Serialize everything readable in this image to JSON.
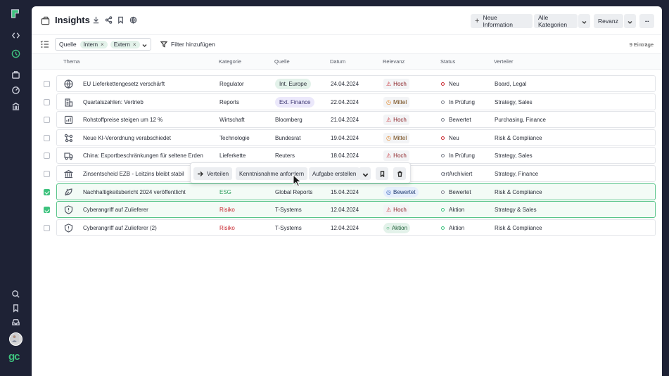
{
  "app": {
    "title": "Insights",
    "logo_text": "gc"
  },
  "toolbar": {
    "new_label": "Neue Information",
    "categories_label": "Alle Kategorien",
    "sort_label": "Revanz",
    "more_label": "···"
  },
  "filter": {
    "source_label": "Quelle",
    "chips": [
      "Intern",
      "Extern"
    ],
    "add_label": "Filter hinzufügen",
    "count_label": "9 Einträge"
  },
  "columns": [
    "Thema",
    "Kategorie",
    "Quelle",
    "Datum",
    "Relevanz",
    "Status",
    "Verteiler"
  ],
  "rows": [
    {
      "thema": "EU Lieferkettengesetz verschärft",
      "kategorie": "Regulator",
      "quelle": "Int. Europe",
      "quelle_style": "green",
      "datum": "24.04.2024",
      "relevanz": "Hoch",
      "rel_style": "hoch",
      "status": "Neu",
      "status_color": "red",
      "verteiler": "Board, Legal",
      "icon": "globe-icon",
      "checked": false
    },
    {
      "thema": "Quartalszahlen: Vertrieb",
      "kategorie": "Reports",
      "quelle": "Ext. Finance",
      "quelle_style": "purple",
      "datum": "22.04.2024",
      "relevanz": "Mittel",
      "rel_style": "mittel",
      "status": "In Prüfung",
      "status_color": "grey",
      "verteiler": "Strategy, Sales",
      "icon": "building-icon",
      "checked": false
    },
    {
      "thema": "Rohstoffpreise steigen um 12 %",
      "kategorie": "Wirtschaft",
      "quelle": "Bloomberg",
      "quelle_style": "plain",
      "datum": "21.04.2024",
      "relevanz": "Hoch",
      "rel_style": "hoch",
      "status": "Bewertet",
      "status_color": "grey",
      "verteiler": "Purchasing, Finance",
      "icon": "chart-icon",
      "checked": false
    },
    {
      "thema": "Neue KI-Verordnung verabschiedet",
      "kategorie": "Technologie",
      "quelle": "Bundesrat",
      "quelle_style": "plain",
      "datum": "19.04.2024",
      "relevanz": "Mittel",
      "rel_style": "mittel",
      "status": "Neu",
      "status_color": "red",
      "verteiler": "Risk & Compliance",
      "icon": "network-icon",
      "checked": false
    },
    {
      "thema": "China: Exportbeschränkungen für seltene Erden",
      "kategorie": "Lieferkette",
      "quelle": "Reuters",
      "quelle_style": "plain",
      "datum": "18.04.2024",
      "relevanz": "Hoch",
      "rel_style": "hoch",
      "status": "In Prüfung",
      "status_color": "grey",
      "verteiler": "Strategy, Sales",
      "icon": "truck-icon",
      "checked": false
    },
    {
      "thema": "Zinsentscheid EZB - Leitzins bleibt stabil",
      "kategorie": "",
      "quelle": "",
      "quelle_style": "plain",
      "datum": "",
      "relevanz": "ert",
      "rel_style": "hidden",
      "status": "Archiviert",
      "status_color": "grey",
      "verteiler": "Strategy, Finance",
      "icon": "bank-icon",
      "checked": false
    },
    {
      "thema": "Nachhaltigkeitsbericht 2024 veröffentlicht",
      "kategorie": "ESG",
      "quelle": "Global Reports",
      "quelle_style": "plain",
      "datum": "15.04.2024",
      "relevanz": "Bewertet",
      "rel_style": "bewertet",
      "status": "Bewertet",
      "status_color": "grey",
      "verteiler": "Risk & Compliance",
      "icon": "leaf-icon",
      "checked": true
    },
    {
      "thema": "Cyberangriff auf Zulieferer",
      "kategorie": "Risiko",
      "quelle": "T-Systems",
      "quelle_style": "plain",
      "datum": "12.04.2024",
      "relevanz": "Hoch",
      "rel_style": "hoch",
      "status": "Aktion",
      "status_color": "green",
      "verteiler": "Strategy & Sales",
      "icon": "shield-alert-icon",
      "checked": true
    },
    {
      "thema": "Cyberangriff auf Zulieferer (2)",
      "kategorie": "Risiko",
      "quelle": "T-Systems",
      "quelle_style": "plain",
      "datum": "12.04.2024",
      "relevanz": "Aktion",
      "rel_style": "aktion",
      "status": "Aktion",
      "status_color": "green",
      "verteiler": "Risk & Compliance",
      "icon": "shield-alert-icon",
      "checked": false
    }
  ],
  "floating_toolbar": {
    "distribute_label": "Verteilen",
    "acknowledge_label": "Kenntnisnahme anfordern",
    "task_label": "Aufgabe erstellen"
  },
  "colors": {
    "accent": "#3ec27e",
    "danger": "#c7262e",
    "warning": "#e07b12",
    "rail": "#1e2235"
  }
}
